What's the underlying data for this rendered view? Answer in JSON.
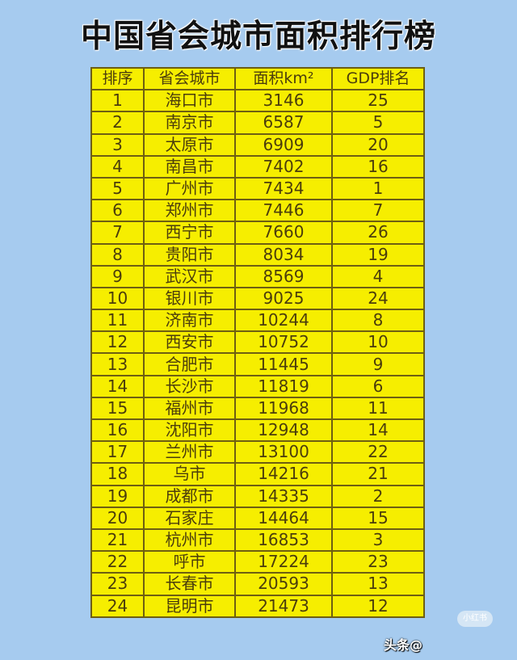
{
  "title": "中国省会城市面积排行榜",
  "headers": [
    "排序",
    "省会城市",
    "面积km²",
    "GDP排名"
  ],
  "rows": [
    [
      "1",
      "海口市",
      "3146",
      "25"
    ],
    [
      "2",
      "南京市",
      "6587",
      "5"
    ],
    [
      "3",
      "太原市",
      "6909",
      "20"
    ],
    [
      "4",
      "南昌市",
      "7402",
      "16"
    ],
    [
      "5",
      "广州市",
      "7434",
      "1"
    ],
    [
      "6",
      "郑州市",
      "7446",
      "7"
    ],
    [
      "7",
      "西宁市",
      "7660",
      "26"
    ],
    [
      "8",
      "贵阳市",
      "8034",
      "19"
    ],
    [
      "9",
      "武汉市",
      "8569",
      "4"
    ],
    [
      "10",
      "银川市",
      "9025",
      "24"
    ],
    [
      "11",
      "济南市",
      "10244",
      "8"
    ],
    [
      "12",
      "西安市",
      "10752",
      "10"
    ],
    [
      "13",
      "合肥市",
      "11445",
      "9"
    ],
    [
      "14",
      "长沙市",
      "11819",
      "6"
    ],
    [
      "15",
      "福州市",
      "11968",
      "11"
    ],
    [
      "16",
      "沈阳市",
      "12948",
      "14"
    ],
    [
      "17",
      "兰州市",
      "13100",
      "22"
    ],
    [
      "18",
      "乌市",
      "14216",
      "21"
    ],
    [
      "19",
      "成都市",
      "14335",
      "2"
    ],
    [
      "20",
      "石家庄",
      "14464",
      "15"
    ],
    [
      "21",
      "杭州市",
      "16853",
      "3"
    ],
    [
      "22",
      "呼市",
      "17224",
      "23"
    ],
    [
      "23",
      "长春市",
      "20593",
      "13"
    ],
    [
      "24",
      "昆明市",
      "21473",
      "12"
    ]
  ],
  "badge": "小红书",
  "watermark": "头条@",
  "colors": {
    "background": "#a6cbef",
    "table": "#f6ee00",
    "border": "#6e5f12",
    "text": "#4b3d0c"
  }
}
